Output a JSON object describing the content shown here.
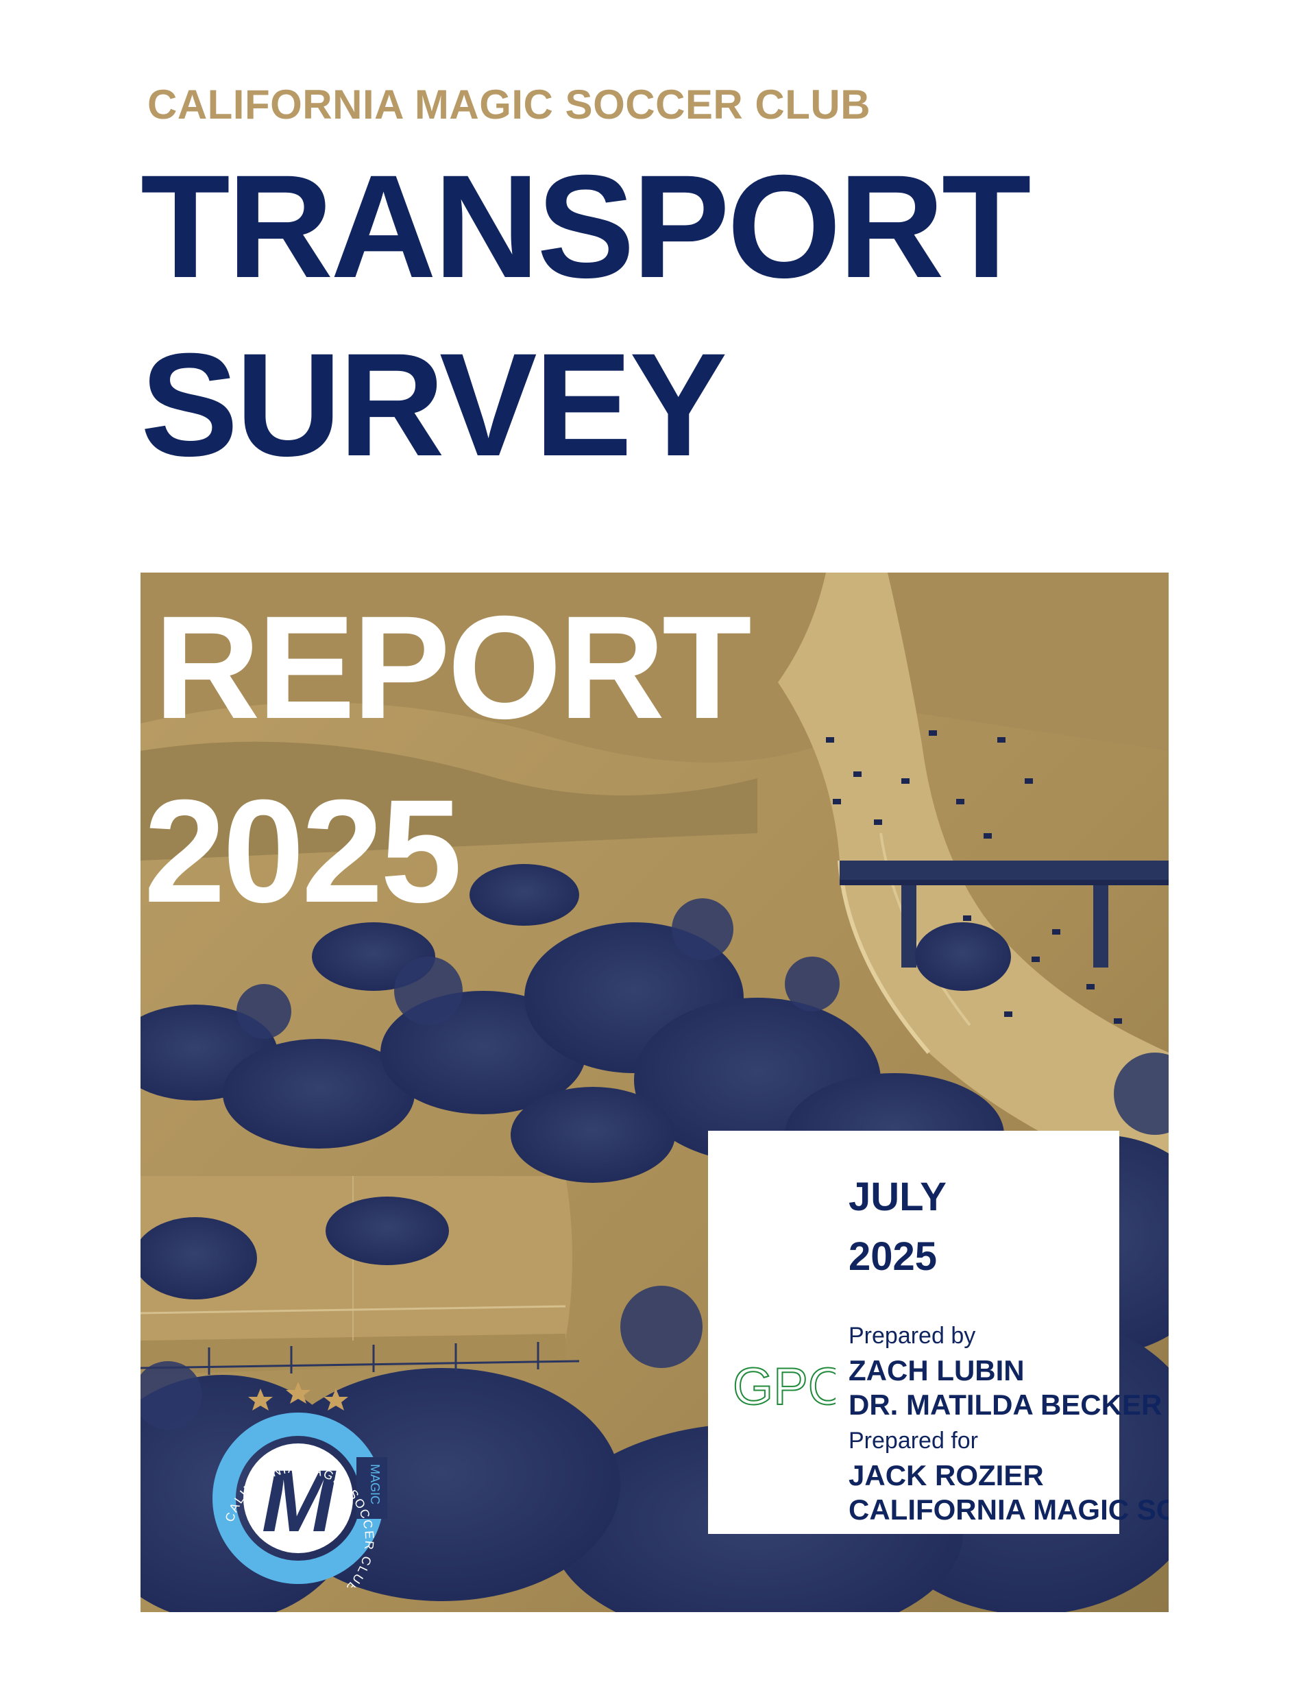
{
  "header": {
    "club_name": "CALIFORNIA MAGIC SOCCER CLUB",
    "title_line1": "TRANSPORT",
    "title_line2": "SURVEY"
  },
  "cover": {
    "report_line1": "REPORT",
    "report_line2": "2025"
  },
  "info_box": {
    "month": "JULY",
    "year": "2025",
    "prepared_by_label": "Prepared by",
    "prepared_by_name1": "ZACH LUBIN",
    "prepared_by_name2": "DR. MATILDA BECKER",
    "prepared_for_label": "Prepared for",
    "prepared_for_name1": "JACK ROZIER",
    "prepared_for_name2": "CALIFORNIA MAGIC SC"
  },
  "logos": {
    "gpc_text": "GPC",
    "club_ring_text": "CALIFORNIA MAGIC SOCCER CLUB",
    "club_magic_text": "MAGIC",
    "club_letter": "M"
  },
  "colors": {
    "navy": "#102560",
    "gold": "#b89a66",
    "photo_gold": "#b1955c",
    "photo_dark": "#243364",
    "logo_blue": "#59b4e8",
    "gpc_green": "#1f8a3a"
  }
}
